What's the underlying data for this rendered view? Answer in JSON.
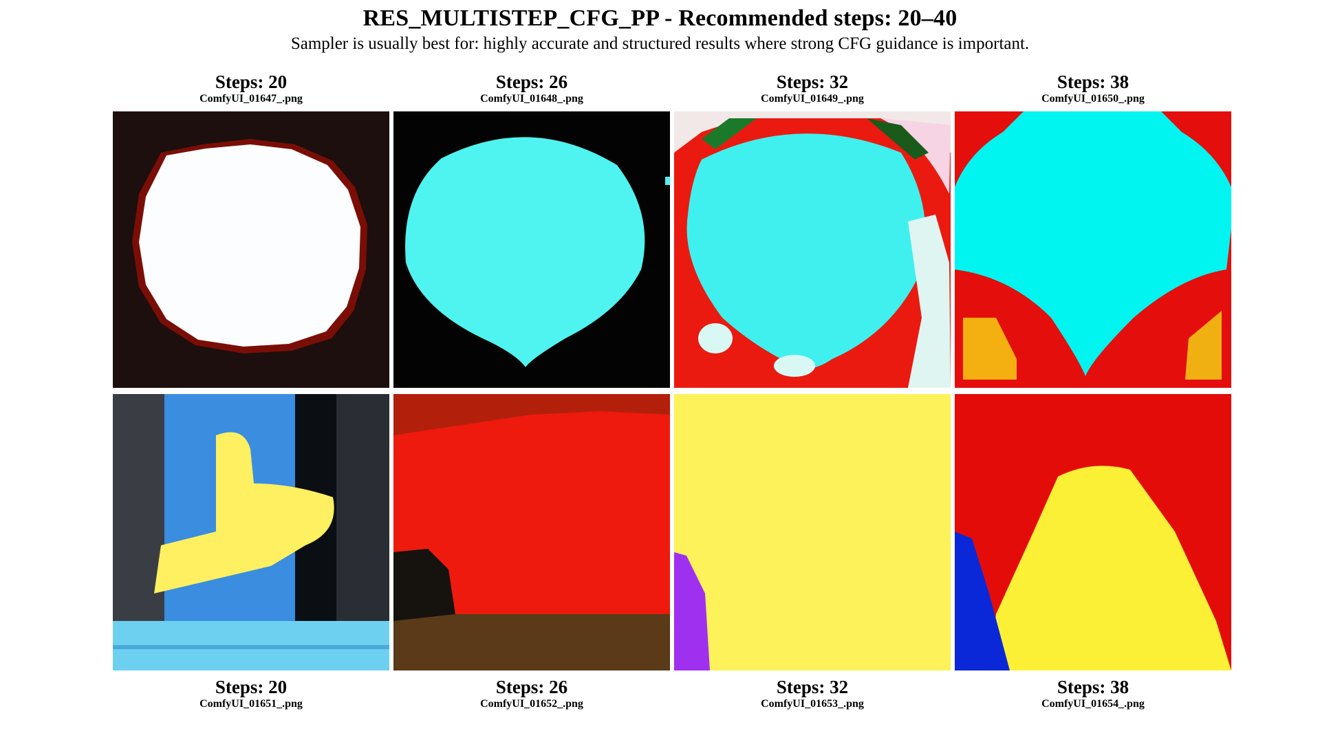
{
  "header": {
    "title": "RES_MULTISTEP_CFG_PP - Recommended steps: 20–40",
    "subtitle": "Sampler is usually best for: highly accurate and structured results where strong CFG guidance is important."
  },
  "grid": {
    "top_row": [
      {
        "steps": "Steps: 20",
        "file": "ComfyUI_01647_.png"
      },
      {
        "steps": "Steps: 26",
        "file": "ComfyUI_01648_.png"
      },
      {
        "steps": "Steps: 32",
        "file": "ComfyUI_01649_.png"
      },
      {
        "steps": "Steps: 38",
        "file": "ComfyUI_01650_.png"
      }
    ],
    "bottom_row": [
      {
        "steps": "Steps: 20",
        "file": "ComfyUI_01651_.png"
      },
      {
        "steps": "Steps: 26",
        "file": "ComfyUI_01652_.png"
      },
      {
        "steps": "Steps: 32",
        "file": "ComfyUI_01653_.png"
      },
      {
        "steps": "Steps: 38",
        "file": "ComfyUI_01654_.png"
      }
    ]
  },
  "colors": {
    "cyan": "#22f2f0",
    "red": "#e21208",
    "yellow": "#fdf05a",
    "black": "#0c0808",
    "white": "#fbfdff"
  }
}
